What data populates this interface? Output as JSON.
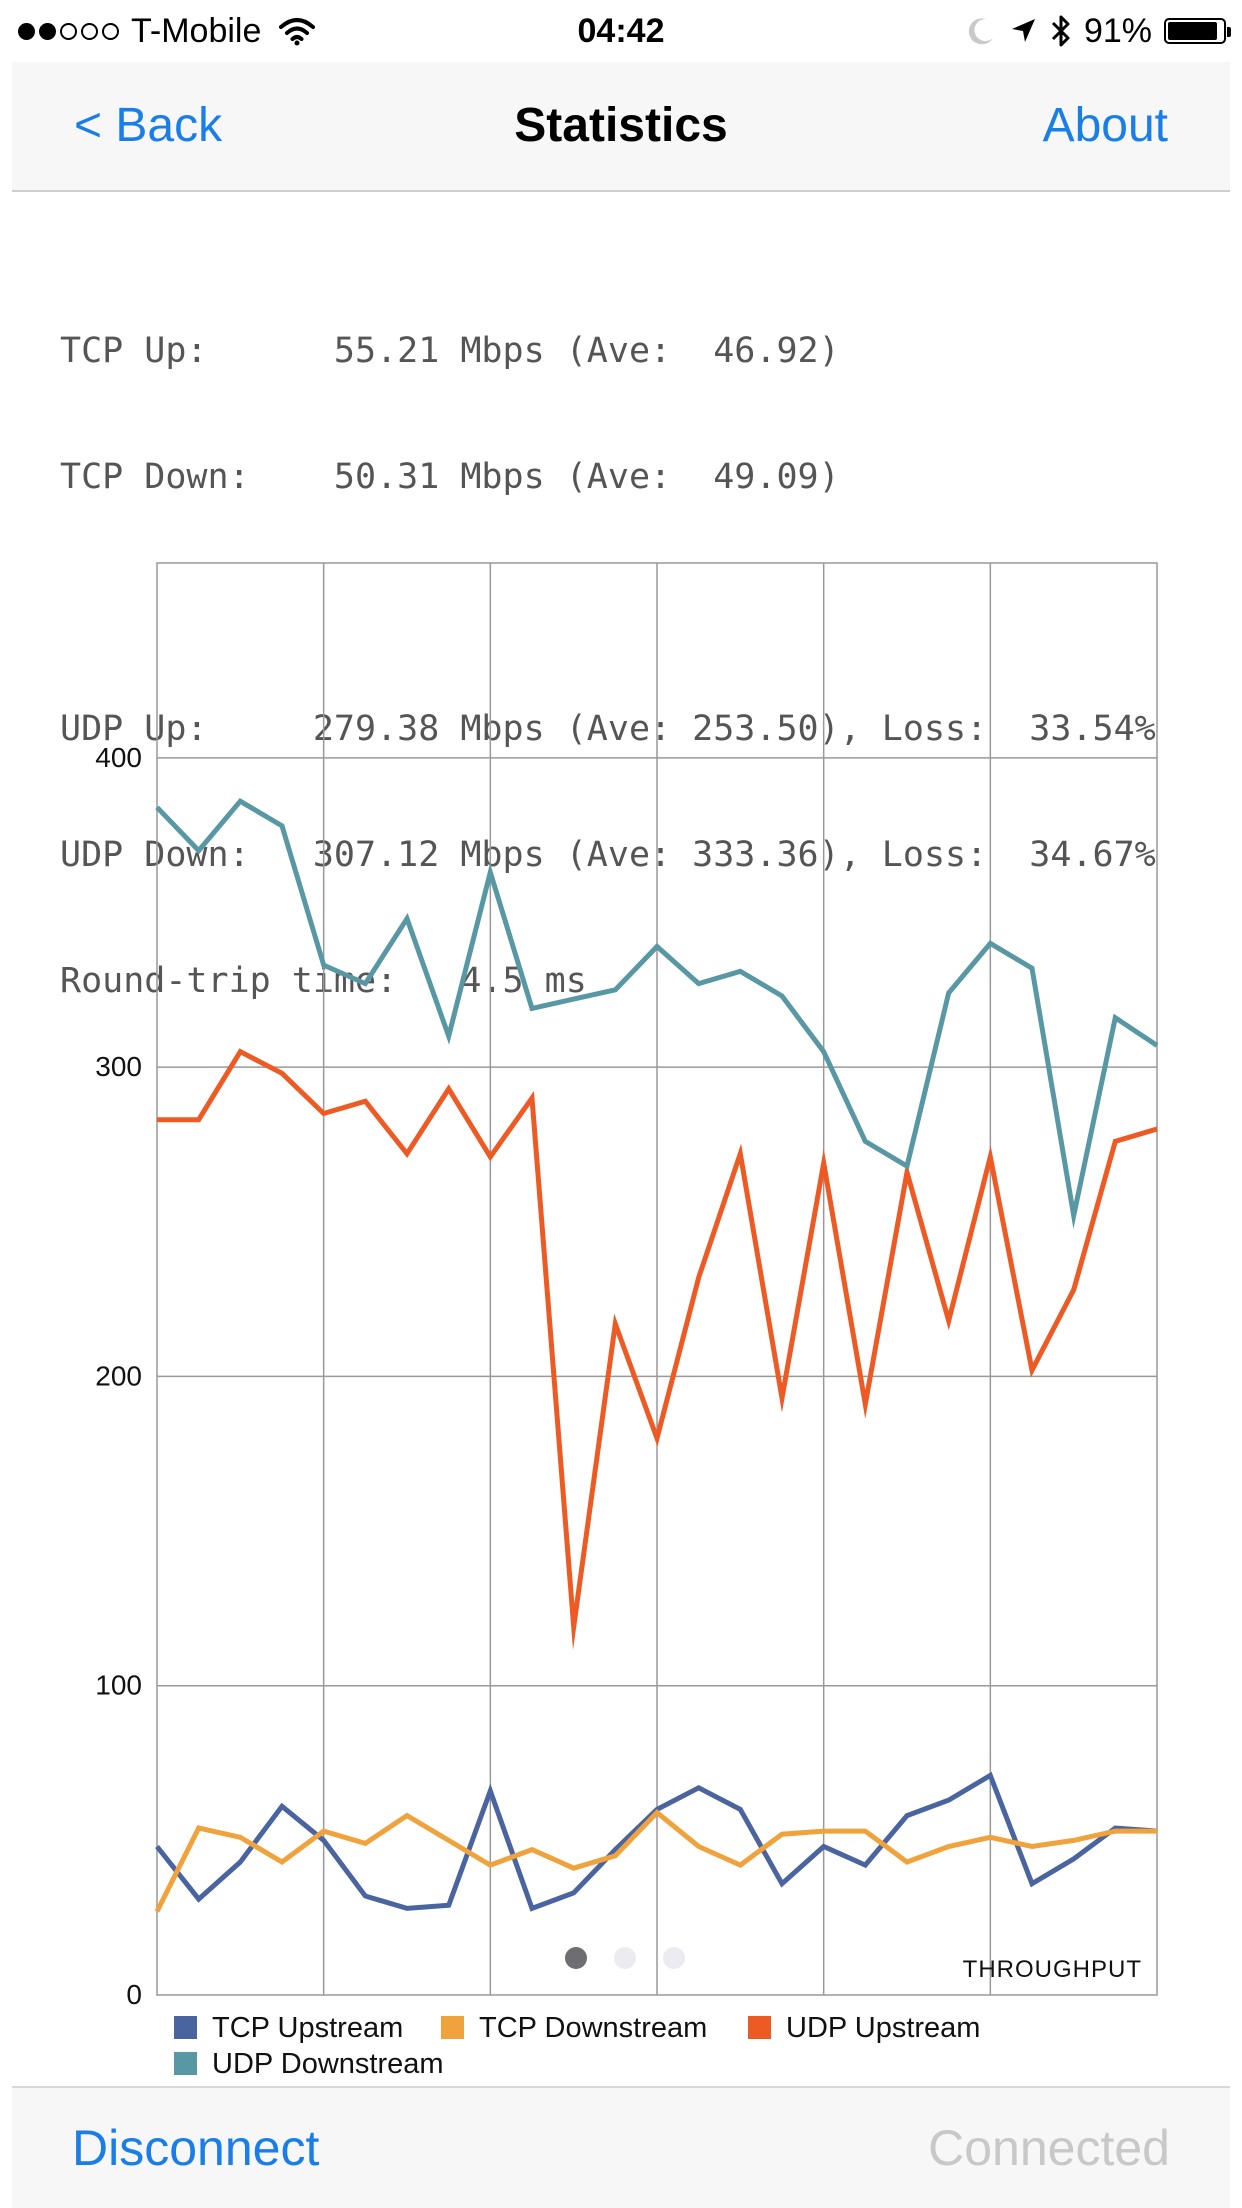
{
  "status_bar": {
    "carrier": "T-Mobile",
    "time": "04:42",
    "battery": "91%",
    "battery_level": 0.91,
    "signal_bars_filled": 2,
    "signal_bars_total": 5
  },
  "nav": {
    "back_label": "< Back",
    "title": "Statistics",
    "about_label": "About"
  },
  "stats": {
    "tcp_up": "TCP Up:      55.21 Mbps (Ave:  46.92)",
    "tcp_down": "TCP Down:    50.31 Mbps (Ave:  49.09)",
    "udp_up": "UDP Up:     279.38 Mbps (Ave: 253.50), Loss:  33.54%",
    "udp_down": "UDP Down:   307.12 Mbps (Ave: 333.36), Loss:  34.67%",
    "rtt": "Round-trip time:   4.5 ms"
  },
  "chart_data": {
    "type": "line",
    "corner_label": "THROUGHPUT",
    "ylim": [
      0,
      463
    ],
    "yticks": [
      0,
      100,
      200,
      300,
      400
    ],
    "xlim": [
      0,
      24
    ],
    "x": [
      0,
      1,
      2,
      3,
      4,
      5,
      6,
      7,
      8,
      9,
      10,
      11,
      12,
      13,
      14,
      15,
      16,
      17,
      18,
      19,
      20,
      21,
      22,
      23,
      24
    ],
    "grid": true,
    "legend_position": "bottom-left",
    "series": [
      {
        "name": "TCP Upstream",
        "color": "#4a64a0",
        "values": [
          48,
          31,
          43,
          61,
          50,
          32,
          28,
          29,
          66,
          28,
          33,
          47,
          60,
          67,
          60,
          36,
          48,
          42,
          58,
          63,
          71,
          36,
          44,
          54,
          53
        ]
      },
      {
        "name": "TCP Downstream",
        "color": "#f0a23c",
        "values": [
          27,
          54,
          51,
          43,
          53,
          49,
          58,
          50,
          42,
          47,
          41,
          45,
          59,
          48,
          42,
          52,
          53,
          53,
          43,
          48,
          51,
          48,
          50,
          53,
          53
        ]
      },
      {
        "name": "UDP Upstream",
        "color": "#ee5a24",
        "values": [
          283,
          283,
          305,
          298,
          285,
          289,
          272,
          293,
          271,
          290,
          119,
          217,
          180,
          232,
          272,
          193,
          269,
          191,
          266,
          218,
          271,
          202,
          228,
          276,
          280
        ]
      },
      {
        "name": "UDP Downstream",
        "color": "#5897a4",
        "values": [
          384,
          370,
          386,
          378,
          333,
          327,
          348,
          310,
          363,
          319,
          322,
          325,
          339,
          327,
          331,
          323,
          305,
          276,
          268,
          324,
          340,
          332,
          252,
          316,
          307
        ]
      }
    ]
  },
  "page_indicator": {
    "total": 3,
    "active": 0
  },
  "bottom": {
    "disconnect_label": "Disconnect",
    "status_label": "Connected"
  }
}
